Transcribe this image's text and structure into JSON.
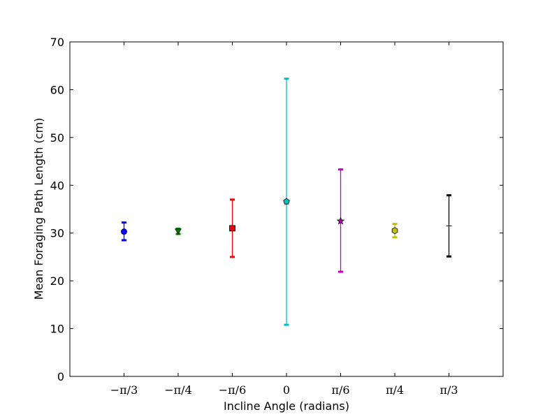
{
  "chart_data": {
    "type": "scatter",
    "title": "",
    "xlabel": "Incline Angle (radians)",
    "ylabel": "Mean Foraging Path Length (cm)",
    "ylim": [
      0,
      70
    ],
    "yticks": [
      0,
      10,
      20,
      30,
      40,
      50,
      60,
      70
    ],
    "grid": false,
    "categories": [
      "−π/3",
      "−π/4",
      "−π/6",
      "0",
      "π/6",
      "π/4",
      "π/3"
    ],
    "points": [
      {
        "category": "−π/3",
        "value": 30.3,
        "err_low": 28.5,
        "err_high": 32.2,
        "color": "#0000ff",
        "marker": "circle"
      },
      {
        "category": "−π/4",
        "value": 30.5,
        "err_low": 29.8,
        "err_high": 30.9,
        "color": "#008000",
        "marker": "triangle-down"
      },
      {
        "category": "−π/6",
        "value": 31.0,
        "err_low": 25.0,
        "err_high": 37.0,
        "color": "#ff0000",
        "marker": "square"
      },
      {
        "category": "0",
        "value": 36.6,
        "err_low": 10.8,
        "err_high": 62.3,
        "color": "#00bfbf",
        "marker": "pentagon"
      },
      {
        "category": "π/6",
        "value": 32.5,
        "err_low": 21.9,
        "err_high": 43.3,
        "color": "#bf00bf",
        "marker": "star"
      },
      {
        "category": "π/4",
        "value": 30.5,
        "err_low": 29.1,
        "err_high": 31.9,
        "color": "#bfbf00",
        "marker": "hexagon"
      },
      {
        "category": "π/3",
        "value": 31.5,
        "err_low": 25.1,
        "err_high": 37.9,
        "color": "#000000",
        "marker": "plus"
      }
    ]
  }
}
